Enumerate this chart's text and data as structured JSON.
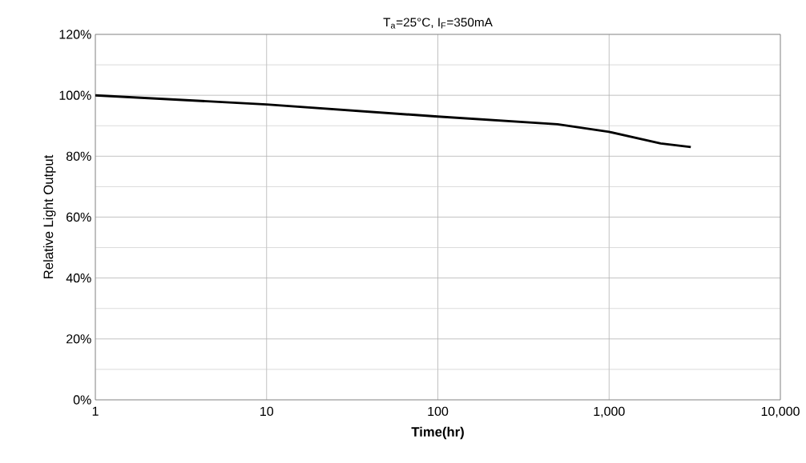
{
  "chart_data": {
    "type": "line",
    "title": "T$_{a}$=25°C, I$_{F}$=350mA",
    "xlabel": "Time(hr)",
    "ylabel": "Relative Light Output",
    "x": [
      1,
      10,
      100,
      500,
      1000,
      2000,
      3000
    ],
    "series": [
      {
        "color": "#000000",
        "values": [
          100,
          97,
          93,
          90.5,
          88,
          84.2,
          83
        ]
      }
    ],
    "log": "x",
    "grid": true,
    "marker": "none",
    "line_style": "solid",
    "xlim": [
      1,
      10000
    ],
    "xticks": [
      1,
      10,
      100,
      {
        "value": 1000,
        "label": "1,000"
      },
      {
        "value": 10000,
        "label": "10,000"
      }
    ],
    "ylim": [
      0,
      120
    ],
    "yticks": [
      {
        "value": 0,
        "label": "0%"
      },
      {
        "value": 20,
        "label": "20%"
      },
      {
        "value": 40,
        "label": "40%"
      },
      {
        "value": 60,
        "label": "60%"
      },
      {
        "value": 80,
        "label": "80%"
      },
      {
        "value": 100,
        "label": "100%"
      },
      {
        "value": 120,
        "label": "120%"
      }
    ]
  }
}
